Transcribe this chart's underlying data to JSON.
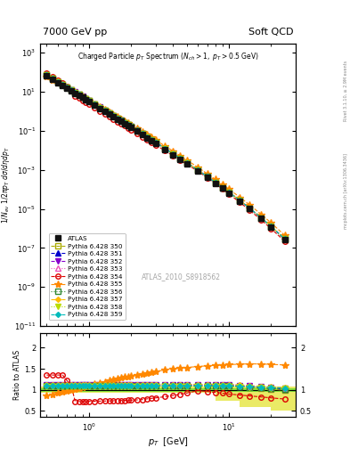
{
  "title_left": "7000 GeV pp",
  "title_right": "Soft QCD",
  "watermark": "ATLAS_2010_S8918562",
  "side_text": "mcplots.cern.ch [arXiv:1306.3436]",
  "side_text2": "Rivet 3.1.10, ≥ 2.9M events",
  "xlim": [
    0.45,
    30
  ],
  "ylim_main": [
    1e-11,
    3000.0
  ],
  "ylim_ratio": [
    0.35,
    2.35
  ],
  "series": [
    {
      "label": "ATLAS",
      "color": "#111111",
      "marker": "s",
      "fillstyle": "full",
      "linestyle": "none",
      "markersize": 4,
      "lw": 0.8
    },
    {
      "label": "Pythia 6.428 350",
      "color": "#aaaa00",
      "marker": "s",
      "fillstyle": "none",
      "linestyle": "--",
      "markersize": 4,
      "lw": 0.8
    },
    {
      "label": "Pythia 6.428 351",
      "color": "#0000cc",
      "marker": "^",
      "fillstyle": "full",
      "linestyle": "--",
      "markersize": 4,
      "lw": 0.8
    },
    {
      "label": "Pythia 6.428 352",
      "color": "#8800cc",
      "marker": "v",
      "fillstyle": "full",
      "linestyle": "--",
      "markersize": 4,
      "lw": 0.8
    },
    {
      "label": "Pythia 6.428 353",
      "color": "#ee55bb",
      "marker": "^",
      "fillstyle": "none",
      "linestyle": ":",
      "markersize": 4,
      "lw": 0.8
    },
    {
      "label": "Pythia 6.428 354",
      "color": "#dd0000",
      "marker": "o",
      "fillstyle": "none",
      "linestyle": "--",
      "markersize": 4,
      "lw": 0.8
    },
    {
      "label": "Pythia 6.428 355",
      "color": "#ff8800",
      "marker": "*",
      "fillstyle": "full",
      "linestyle": "--",
      "markersize": 6,
      "lw": 0.8
    },
    {
      "label": "Pythia 6.428 356",
      "color": "#338833",
      "marker": "s",
      "fillstyle": "none",
      "linestyle": ":",
      "markersize": 4,
      "lw": 0.8
    },
    {
      "label": "Pythia 6.428 357",
      "color": "#ffbb00",
      "marker": "D",
      "fillstyle": "full",
      "linestyle": "-.",
      "markersize": 3,
      "lw": 0.8
    },
    {
      "label": "Pythia 6.428 358",
      "color": "#bbdd00",
      "marker": "v",
      "fillstyle": "full",
      "linestyle": ":",
      "markersize": 4,
      "lw": 0.8
    },
    {
      "label": "Pythia 6.428 359",
      "color": "#00bbbb",
      "marker": "D",
      "fillstyle": "full",
      "linestyle": "--",
      "markersize": 3,
      "lw": 0.8
    }
  ]
}
